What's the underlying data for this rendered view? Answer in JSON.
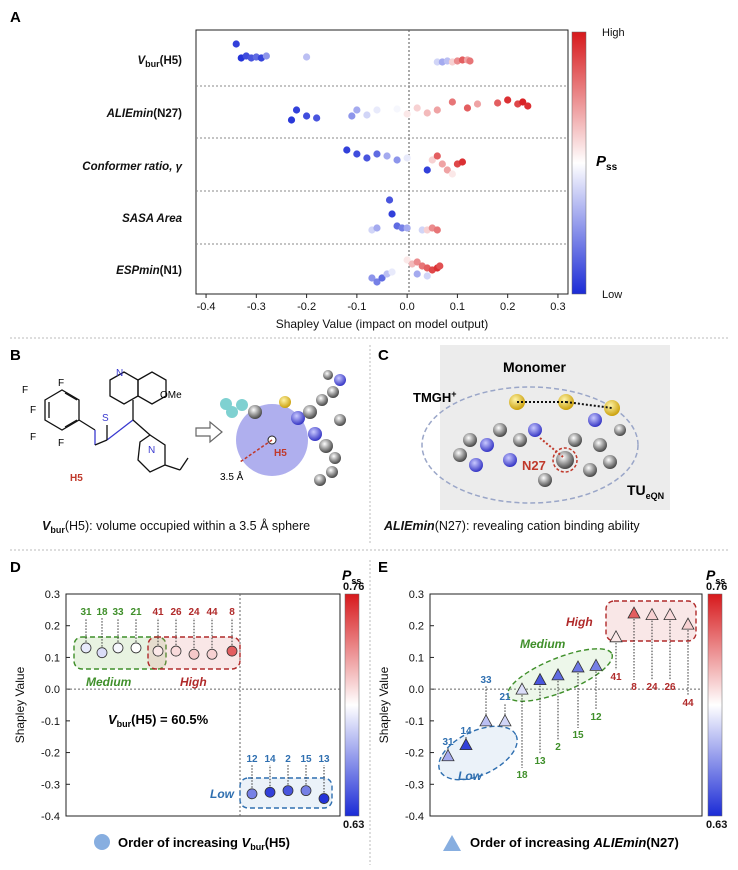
{
  "panels": {
    "a": "A",
    "b": "B",
    "c": "C",
    "d": "D",
    "e": "E"
  },
  "chart_data": [
    {
      "id": "A",
      "type": "scatter",
      "xlabel": "Shapley Value (impact on model output)",
      "xlim": [
        -0.42,
        0.32
      ],
      "xticks": [
        "-0.4",
        "-0.3",
        "-0.2",
        "-0.1",
        "0.0",
        "0.1",
        "0.2",
        "0.3"
      ],
      "colorbar": {
        "label_main": "P",
        "label_sub": "ss",
        "high": "High",
        "low": "Low"
      },
      "features": [
        {
          "name_main": "V",
          "name_sub": "bur",
          "name_rest": "(H5)"
        },
        {
          "name_main": "ALIEmin",
          "name_sub": "",
          "name_rest": "(N27)"
        },
        {
          "name_main": "Conformer ratio, ",
          "name_sub": "",
          "name_rest": "γ"
        },
        {
          "name_main": "SASA Area",
          "name_sub": "",
          "name_rest": ""
        },
        {
          "name_main": "ESPmin",
          "name_sub": "",
          "name_rest": "(N1)"
        }
      ],
      "grid": false
    },
    {
      "id": "D",
      "type": "scatter",
      "ylabel": "Shapley Value",
      "ylim": [
        -0.4,
        0.3
      ],
      "yticks": [
        "0.3",
        "0.2",
        "0.1",
        "0.0",
        "-0.1",
        "-0.2",
        "-0.3",
        "-0.4"
      ],
      "annotation_main": "V",
      "annotation_sub": "bur",
      "annotation_rest": "(H5) = 60.5%",
      "legend_main": "Order of increasing ",
      "legend_var": "V",
      "legend_sub": "bur",
      "legend_rest": "(H5)",
      "colorbar": {
        "label_main": "P",
        "label_sub": "ss",
        "max": "0.76",
        "min": "0.63"
      },
      "groups": [
        {
          "name": "Medium",
          "color": "#3f8f2a"
        },
        {
          "name": "High",
          "color": "#b02a2a"
        },
        {
          "name": "Low",
          "color": "#2f6fb0"
        }
      ],
      "points": [
        {
          "label": "31",
          "y": 0.13,
          "group": "Medium"
        },
        {
          "label": "18",
          "y": 0.115,
          "group": "Medium"
        },
        {
          "label": "33",
          "y": 0.13,
          "group": "Medium"
        },
        {
          "label": "21",
          "y": 0.13,
          "group": "Medium"
        },
        {
          "label": "41",
          "y": 0.12,
          "group": "High"
        },
        {
          "label": "26",
          "y": 0.12,
          "group": "High"
        },
        {
          "label": "24",
          "y": 0.11,
          "group": "High"
        },
        {
          "label": "44",
          "y": 0.11,
          "group": "High"
        },
        {
          "label": "8",
          "y": 0.12,
          "group": "High"
        },
        {
          "label": "12",
          "y": -0.33,
          "group": "Low"
        },
        {
          "label": "14",
          "y": -0.325,
          "group": "Low"
        },
        {
          "label": "2",
          "y": -0.32,
          "group": "Low"
        },
        {
          "label": "15",
          "y": -0.32,
          "group": "Low"
        },
        {
          "label": "13",
          "y": -0.345,
          "group": "Low"
        }
      ]
    },
    {
      "id": "E",
      "type": "scatter",
      "ylabel": "Shapley Value",
      "ylim": [
        -0.4,
        0.3
      ],
      "yticks": [
        "0.3",
        "0.2",
        "0.1",
        "0.0",
        "-0.1",
        "-0.2",
        "-0.3",
        "-0.4"
      ],
      "legend_main": "Order of increasing ",
      "legend_var": "ALIEmin",
      "legend_rest": "(N27)",
      "colorbar": {
        "label_main": "P",
        "label_sub": "ss",
        "max": "0.76",
        "min": "0.63"
      },
      "groups": [
        {
          "name": "Low",
          "color": "#2f6fb0"
        },
        {
          "name": "Medium",
          "color": "#3f8f2a"
        },
        {
          "name": "High",
          "color": "#b02a2a"
        }
      ],
      "points": [
        {
          "label": "31",
          "y": -0.21,
          "group": "Low"
        },
        {
          "label": "14",
          "y": -0.175,
          "group": "Low"
        },
        {
          "label": "33",
          "y": -0.1,
          "group": "Low"
        },
        {
          "label": "21",
          "y": -0.1,
          "group": "Low"
        },
        {
          "label": "18",
          "y": 0.0,
          "group": "Medium"
        },
        {
          "label": "13",
          "y": 0.03,
          "group": "Medium"
        },
        {
          "label": "2",
          "y": 0.045,
          "group": "Medium"
        },
        {
          "label": "15",
          "y": 0.07,
          "group": "Medium"
        },
        {
          "label": "12",
          "y": 0.075,
          "group": "Medium"
        },
        {
          "label": "41",
          "y": 0.165,
          "group": "High"
        },
        {
          "label": "8",
          "y": 0.24,
          "group": "High"
        },
        {
          "label": "24",
          "y": 0.235,
          "group": "High"
        },
        {
          "label": "26",
          "y": 0.235,
          "group": "High"
        },
        {
          "label": "44",
          "y": 0.205,
          "group": "High"
        }
      ]
    }
  ],
  "panel_b": {
    "ome": "OMe",
    "h5": "H5",
    "radius": "3.5 Å",
    "caption_main": "V",
    "caption_sub": "bur",
    "caption_rest": "(H5): volume occupied within a 3.5 Å sphere"
  },
  "panel_c": {
    "monomer": "Monomer",
    "tmgh": "TMGH",
    "tmgh_sup": "+",
    "n27": "N27",
    "tu": "TU",
    "tu_sub": "eQN",
    "caption_main": "ALIEmin",
    "caption_rest": "(N27): revealing cation binding ability"
  }
}
